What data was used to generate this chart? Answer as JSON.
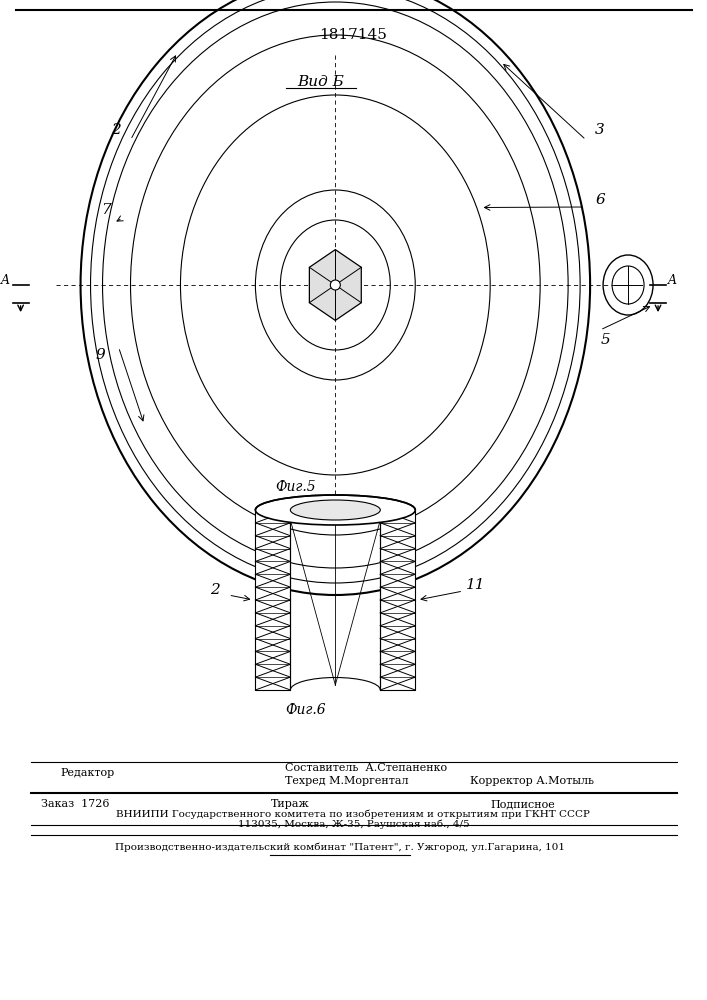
{
  "patent_number": "1817145",
  "bg_color": "#ffffff",
  "fig5_label": "Фиг.5",
  "fig6_label": "Фиг.6",
  "vid_b_label": "Вид Б",
  "editor_label": "Редактор",
  "footer_line1a": "Составитель  А.Степаненко",
  "footer_line1b": "Техред М.Моргентал",
  "footer_line1c": "Корректор А.Мотыль",
  "footer_order": "Заказ  1726",
  "footer_tirazh": "Тираж",
  "footer_podp": "Подписное",
  "footer_vniip1": "ВНИИПИ Государственного комитета по изобретениям и открытиям при ГКНТ СССР",
  "footer_vniip2": "113035, Москва, Ж-35, Раушская наб., 4/5",
  "footer_patent": "Производственно-издательский комбинат \"Патент\", г. Ужгород, ул.Гагарина, 101"
}
